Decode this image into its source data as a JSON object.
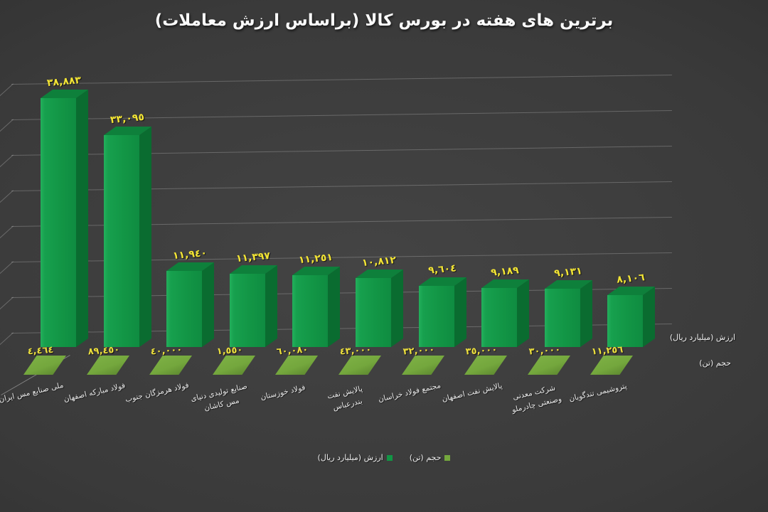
{
  "title": "برترین های هفته در بورس کالا (براساس ارزش معاملات)",
  "chart_data": {
    "type": "bar",
    "style": "3d-columns-dark",
    "title": "برترین های هفته در بورس کالا (براساس ارزش معاملات)",
    "category_order": "left-to-right-descending",
    "background_color": "#3a3a3a",
    "value_label_color": "#f2e435",
    "grid": true,
    "legend_position": "bottom",
    "categories": [
      "ملی صنایع مس ایران",
      "فولاد مبارکه اصفهان",
      "فولاد هرمزگان جنوب",
      "صنایع تولیدی دنیای\nمس کاشان",
      "فولاد خوزستان",
      "پالایش نفت\nبندرعباس",
      "مجتمع فولاد خراسان",
      "پالایش نفت اصفهان",
      "شرکت معدنی\nوصنعتی چادرملو",
      "پتروشیمی تندگویان"
    ],
    "series": [
      {
        "name": "ارزش (میلیارد ریال)",
        "color": "#129545",
        "values": [
          38883,
          33095,
          11940,
          11397,
          11251,
          10812,
          9604,
          9189,
          9131,
          8106
        ],
        "labels_fa": [
          "٣٨,٨٨٣",
          "٣٣,٠٩٥",
          "١١,٩٤٠",
          "١١,٣٩٧",
          "١١,٢٥١",
          "١٠,٨١٢",
          "٩,٦٠٤",
          "٩,١٨٩",
          "٩,١٣١",
          "٨,١٠٦"
        ]
      },
      {
        "name": "حجم (تن)",
        "color": "#74a73d",
        "values": [
          4464,
          89450,
          40000,
          1550,
          60080,
          43000,
          32000,
          35000,
          30000,
          11256
        ],
        "labels_fa": [
          "٤,٤٦٤",
          "٨٩,٤٥٠",
          "٤٠,٠٠٠",
          "١,٥٥٠",
          "٦٠,٠٨٠",
          "٤٣,٠٠٠",
          "٣٢,٠٠٠",
          "٣٥,٠٠٠",
          "٣٠,٠٠٠",
          "١١,٢٥٦"
        ]
      }
    ],
    "axis_captions": {
      "value_axis": "ارزش (میلیارد ریال)",
      "volume_axis": "حجم (تن)"
    },
    "legend": [
      {
        "label": "ارزش (میلیارد ریال)",
        "color": "#129545"
      },
      {
        "label": "حجم (تن)",
        "color": "#74a73d"
      }
    ]
  }
}
